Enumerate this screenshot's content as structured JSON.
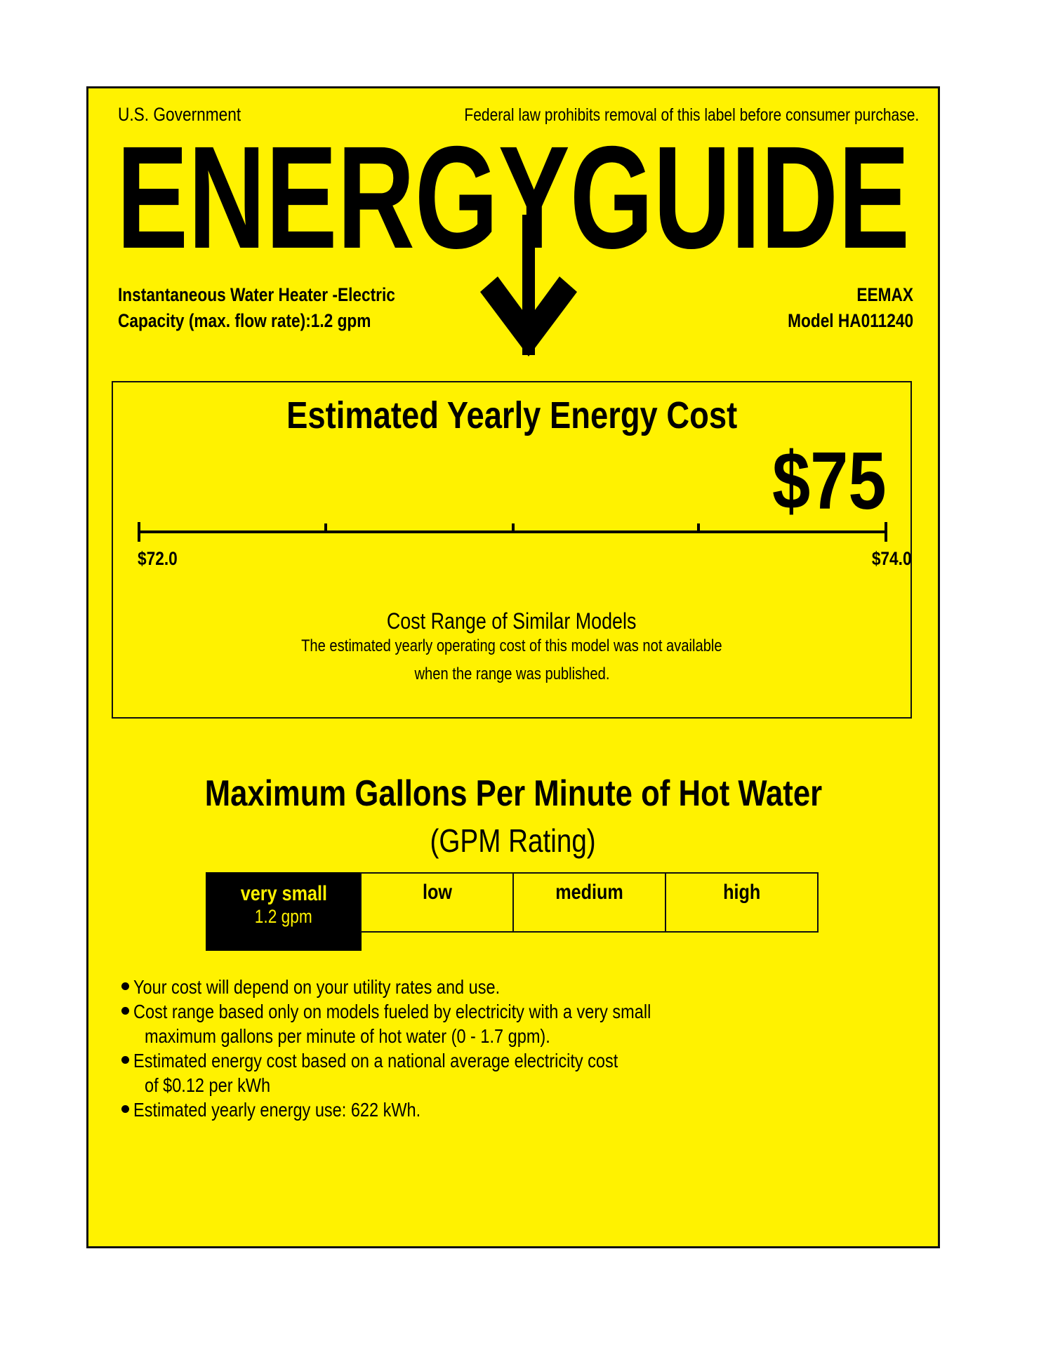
{
  "header": {
    "issuer": "U.S. Government",
    "notice": "Federal law prohibits removal of this label before consumer purchase.",
    "logo_text": "ENERGYGUIDE"
  },
  "product": {
    "type": "Instantaneous Water Heater -Electric",
    "capacity": "Capacity (max. flow rate):1.2 gpm",
    "brand": "EEMAX",
    "model": "Model HA011240"
  },
  "cost": {
    "title": "Estimated Yearly Energy Cost",
    "value": "$75",
    "range_min_label": "$72.0",
    "range_max_label": "$74.0",
    "range_title": "Cost Range of Similar Models",
    "range_note_1": "The estimated yearly operating cost of this model was not available",
    "range_note_2": "when the range was published."
  },
  "gpm": {
    "title": "Maximum Gallons Per Minute of Hot Water",
    "subtitle": "(GPM Rating)",
    "categories": [
      {
        "label": "very small",
        "value": "1.2 gpm",
        "selected": true
      },
      {
        "label": "low"
      },
      {
        "label": "medium"
      },
      {
        "label": "high"
      }
    ]
  },
  "notes": [
    "Your cost will depend on your utility rates and use.",
    "Cost range based only on models fueled by electricity with a very small",
    "maximum gallons per minute of hot water (0 - 1.7 gpm).",
    "Estimated energy cost based on a national average electricity cost",
    "of $0.12 per kWh",
    "Estimated yearly energy use: 622 kWh."
  ],
  "colors": {
    "label_background": "#FFF200",
    "ink": "#000000"
  }
}
